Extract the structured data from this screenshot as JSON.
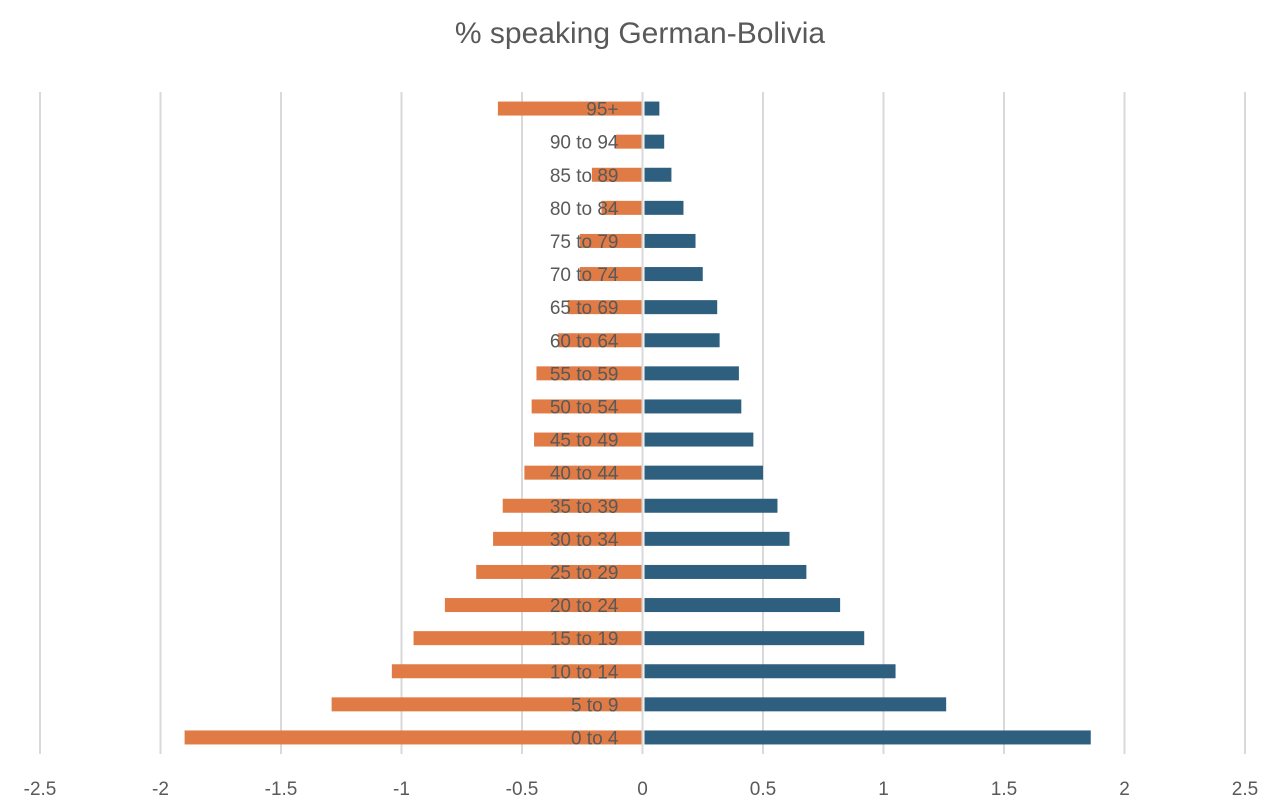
{
  "chart_data": {
    "type": "bar",
    "orientation": "horizontal",
    "title": "% speaking German-Bolivia",
    "xlabel": "",
    "ylabel": "",
    "xlim": [
      -2.5,
      2.5
    ],
    "xticks": [
      -2.5,
      -2,
      -1.5,
      -1,
      -0.5,
      0,
      0.5,
      1,
      1.5,
      2,
      2.5
    ],
    "xtick_labels": [
      "-2.5",
      "-2",
      "-1.5",
      "-1",
      "-0.5",
      "0",
      "0.5",
      "1",
      "1.5",
      "2",
      "2.5"
    ],
    "grid": true,
    "legend": "none",
    "categories": [
      "0 to 4",
      "5 to 9",
      "10 to 14",
      "15 to 19",
      "20 to 24",
      "25 to 29",
      "30 to 34",
      "35 to 39",
      "40 to 44",
      "45 to 49",
      "50 to 54",
      "55 to 59",
      "60 to 64",
      "65 to 69",
      "70 to 74",
      "75 to 79",
      "80 to 84",
      "85 to 89",
      "90 to 94",
      "95+"
    ],
    "series": [
      {
        "side": "left",
        "color": "#E07B45",
        "values": [
          -1.9,
          -1.29,
          -1.04,
          -0.95,
          -0.82,
          -0.69,
          -0.62,
          -0.58,
          -0.49,
          -0.45,
          -0.46,
          -0.44,
          -0.35,
          -0.31,
          -0.26,
          -0.26,
          -0.17,
          -0.21,
          -0.11,
          -0.6
        ]
      },
      {
        "side": "right",
        "color": "#2E5F7F",
        "values": [
          1.86,
          1.26,
          1.05,
          0.92,
          0.82,
          0.68,
          0.61,
          0.56,
          0.5,
          0.46,
          0.41,
          0.4,
          0.32,
          0.31,
          0.25,
          0.22,
          0.17,
          0.12,
          0.09,
          0.07
        ]
      }
    ]
  }
}
